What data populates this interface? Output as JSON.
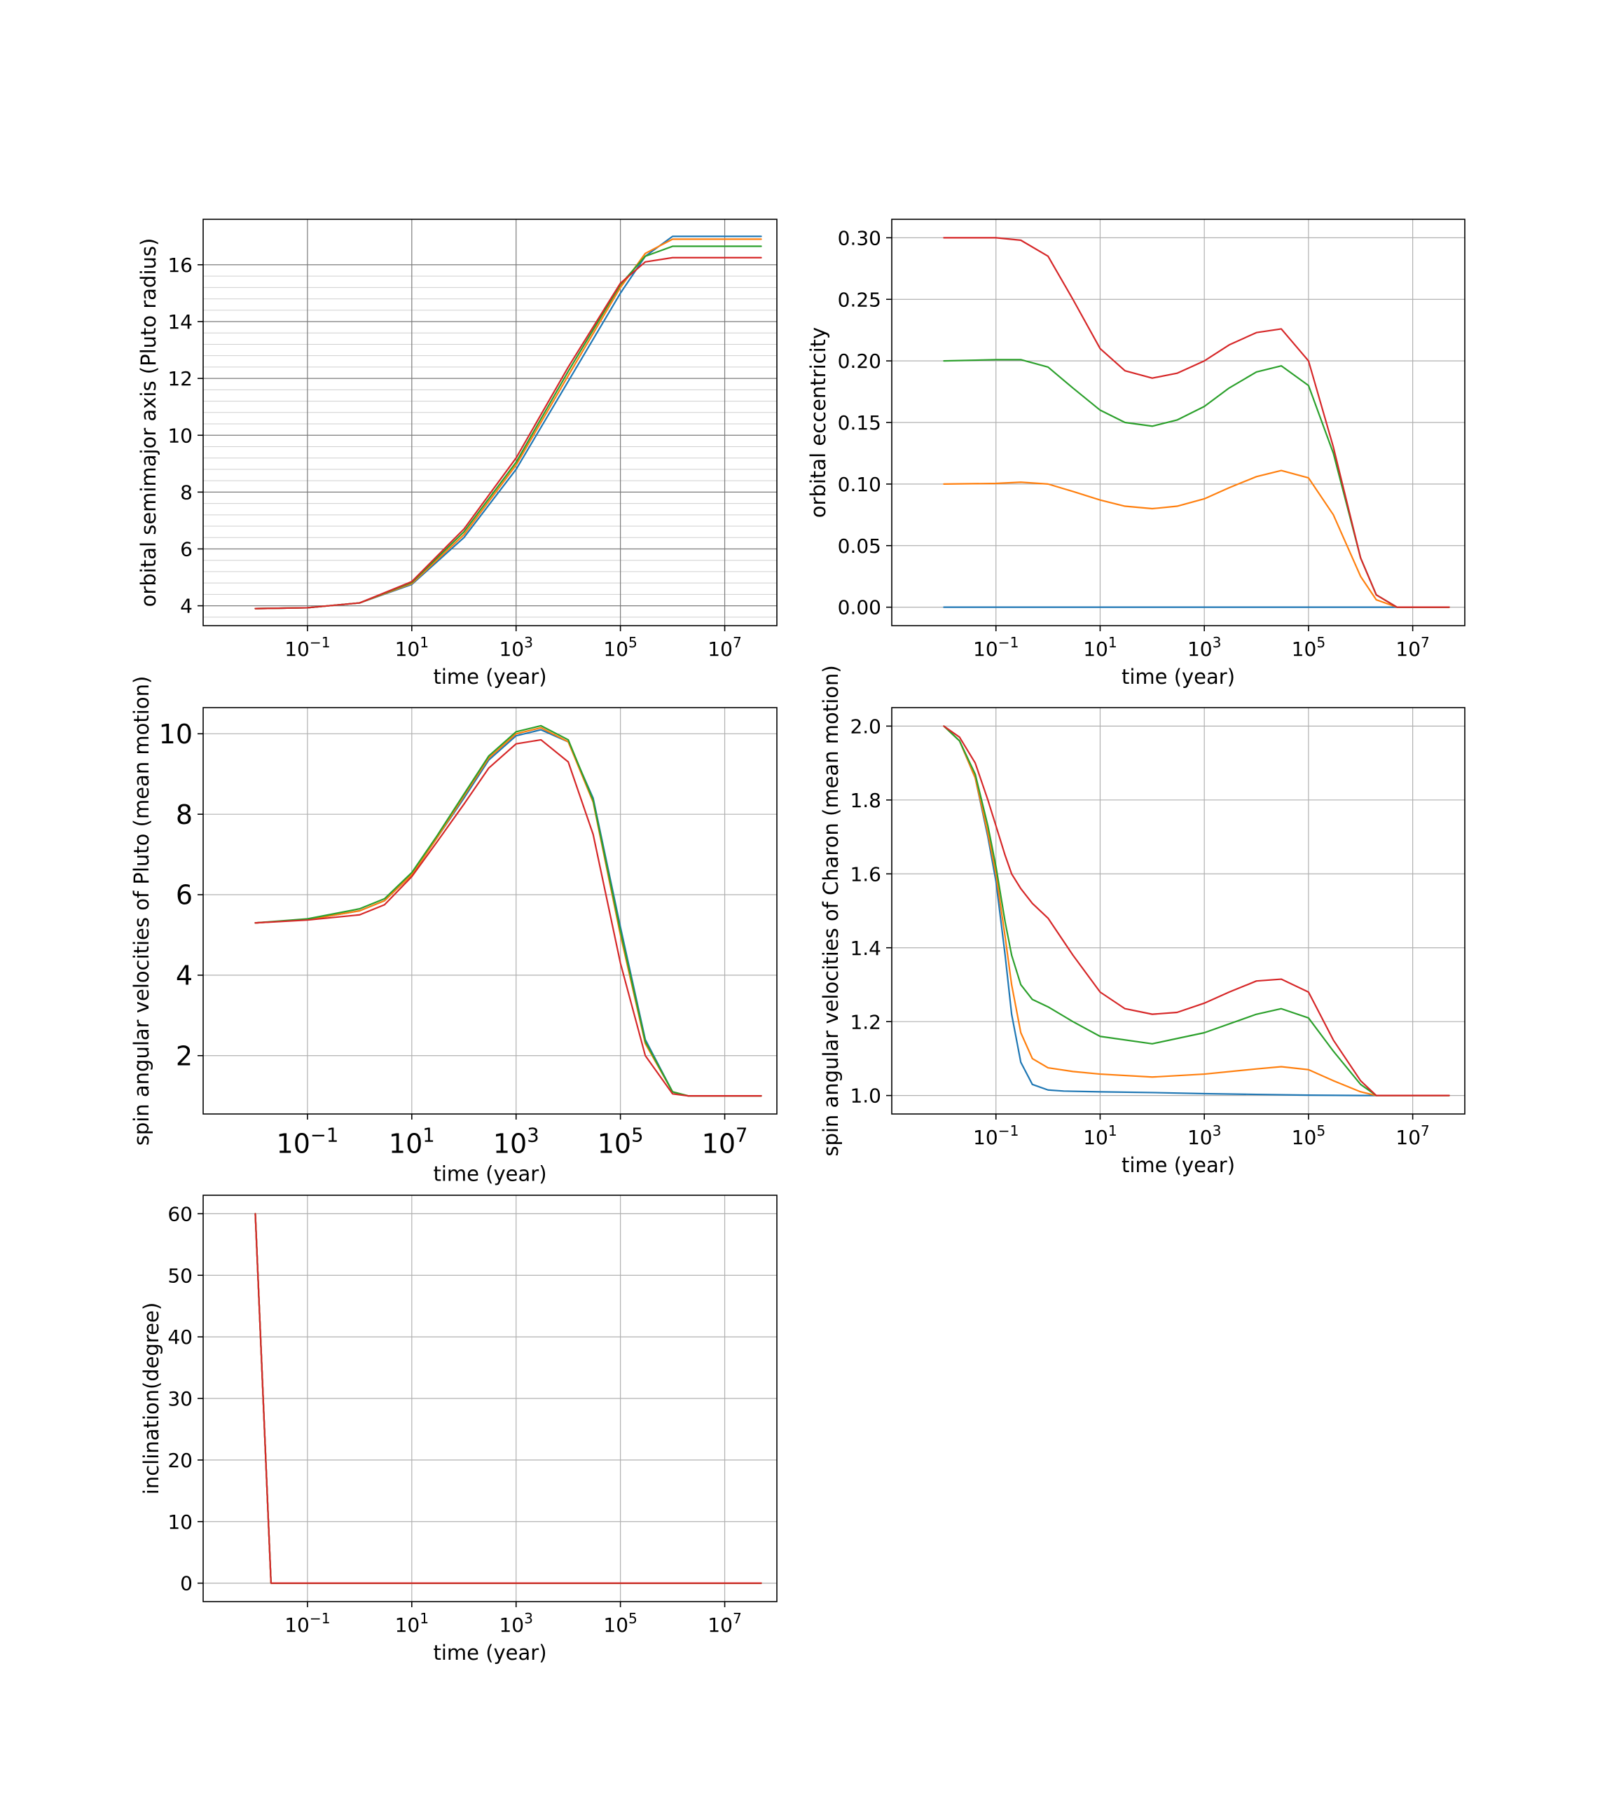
{
  "colors": {
    "C0": "#1f77b4",
    "C1": "#ff7f0e",
    "C2": "#2ca02c",
    "C3": "#d62728"
  },
  "chart_data": [
    {
      "type": "line",
      "id": "semimajor",
      "xscale": "log",
      "xlabel": "time  (year)",
      "ylabel": "orbital semimajor axis (Pluto radius)",
      "xlim": [
        0.001,
        100000000
      ],
      "ylim": [
        3.3,
        17.6
      ],
      "xticks": [
        0.1,
        10,
        1000,
        100000,
        10000000
      ],
      "xtick_labels": [
        [
          "10",
          "−1"
        ],
        [
          "10",
          "1"
        ],
        [
          "10",
          "3"
        ],
        [
          "10",
          "5"
        ],
        [
          "10",
          "7"
        ]
      ],
      "yticks": [
        4,
        6,
        8,
        10,
        12,
        14,
        16
      ],
      "ytick_labels": [
        "4",
        "6",
        "8",
        "10",
        "12",
        "14",
        "16"
      ],
      "grid": "major+minor",
      "series": [
        {
          "color": "C0",
          "x": [
            0.01,
            0.1,
            1,
            10,
            100,
            1000,
            10000,
            100000,
            300000,
            1000000,
            10000000,
            50000000
          ],
          "y": [
            3.9,
            3.93,
            4.1,
            4.75,
            6.4,
            8.8,
            11.9,
            15.0,
            16.3,
            17.0,
            17.0,
            17.0
          ]
        },
        {
          "color": "C1",
          "x": [
            0.01,
            0.1,
            1,
            10,
            100,
            1000,
            10000,
            100000,
            300000,
            1000000,
            10000000,
            50000000
          ],
          "y": [
            3.9,
            3.93,
            4.1,
            4.78,
            6.5,
            8.95,
            12.1,
            15.2,
            16.4,
            16.9,
            16.9,
            16.9
          ]
        },
        {
          "color": "C2",
          "x": [
            0.01,
            0.1,
            1,
            10,
            100,
            1000,
            10000,
            100000,
            300000,
            1000000,
            10000000,
            50000000
          ],
          "y": [
            3.9,
            3.93,
            4.1,
            4.82,
            6.6,
            9.05,
            12.25,
            15.3,
            16.3,
            16.65,
            16.65,
            16.65
          ]
        },
        {
          "color": "C3",
          "x": [
            0.01,
            0.1,
            1,
            10,
            100,
            1000,
            10000,
            100000,
            300000,
            1000000,
            10000000,
            50000000
          ],
          "y": [
            3.9,
            3.93,
            4.1,
            4.85,
            6.7,
            9.2,
            12.4,
            15.35,
            16.1,
            16.25,
            16.25,
            16.25
          ]
        }
      ]
    },
    {
      "type": "line",
      "id": "eccentricity",
      "xscale": "log",
      "xlabel": "time  (year)",
      "ylabel": "orbital eccentricity",
      "xlim": [
        0.001,
        100000000
      ],
      "ylim": [
        -0.015,
        0.315
      ],
      "xticks": [
        0.1,
        10,
        1000,
        100000,
        10000000
      ],
      "xtick_labels": [
        [
          "10",
          "−1"
        ],
        [
          "10",
          "1"
        ],
        [
          "10",
          "3"
        ],
        [
          "10",
          "5"
        ],
        [
          "10",
          "7"
        ]
      ],
      "yticks": [
        0.0,
        0.05,
        0.1,
        0.15,
        0.2,
        0.25,
        0.3
      ],
      "ytick_labels": [
        "0.00",
        "0.05",
        "0.10",
        "0.15",
        "0.20",
        "0.25",
        "0.30"
      ],
      "grid": "major",
      "series": [
        {
          "color": "C0",
          "x": [
            0.01,
            50000000
          ],
          "y": [
            0.0,
            0.0
          ]
        },
        {
          "color": "C1",
          "x": [
            0.01,
            0.1,
            0.3,
            1,
            3,
            10,
            30,
            100,
            300,
            1000,
            3000,
            10000,
            30000,
            100000,
            300000,
            1000000,
            2000000,
            5000000,
            50000000
          ],
          "y": [
            0.1,
            0.1005,
            0.1015,
            0.1,
            0.094,
            0.087,
            0.082,
            0.08,
            0.082,
            0.088,
            0.097,
            0.106,
            0.111,
            0.105,
            0.075,
            0.025,
            0.006,
            0.0,
            0.0
          ]
        },
        {
          "color": "C2",
          "x": [
            0.01,
            0.1,
            0.3,
            1,
            3,
            10,
            30,
            100,
            300,
            1000,
            3000,
            10000,
            30000,
            100000,
            300000,
            1000000,
            2000000,
            5000000,
            50000000
          ],
          "y": [
            0.2,
            0.201,
            0.201,
            0.195,
            0.178,
            0.16,
            0.15,
            0.147,
            0.152,
            0.163,
            0.178,
            0.191,
            0.196,
            0.18,
            0.125,
            0.04,
            0.01,
            0.0,
            0.0
          ]
        },
        {
          "color": "C3",
          "x": [
            0.01,
            0.1,
            0.3,
            1,
            3,
            10,
            30,
            100,
            300,
            1000,
            3000,
            10000,
            30000,
            100000,
            300000,
            1000000,
            2000000,
            5000000,
            50000000
          ],
          "y": [
            0.3,
            0.3,
            0.298,
            0.285,
            0.25,
            0.21,
            0.192,
            0.186,
            0.19,
            0.2,
            0.213,
            0.223,
            0.226,
            0.2,
            0.13,
            0.04,
            0.01,
            0.0,
            0.0
          ]
        }
      ]
    },
    {
      "type": "line",
      "id": "spin-pluto",
      "xscale": "log",
      "xlabel": "time (year)",
      "ylabel": "spin angular velocities of Pluto (mean motion)",
      "xlim": [
        0.001,
        100000000
      ],
      "ylim": [
        0.55,
        10.65
      ],
      "xticks": [
        0.1,
        10,
        1000,
        100000,
        10000000
      ],
      "xtick_labels": [
        [
          "10",
          "−1"
        ],
        [
          "10",
          "1"
        ],
        [
          "10",
          "3"
        ],
        [
          "10",
          "5"
        ],
        [
          "10",
          "7"
        ]
      ],
      "yticks": [
        2,
        4,
        6,
        8,
        10
      ],
      "ytick_labels": [
        "2",
        "4",
        "6",
        "8",
        "10"
      ],
      "grid": "major",
      "series": [
        {
          "color": "C0",
          "x": [
            0.01,
            0.1,
            1,
            3,
            10,
            30,
            100,
            300,
            1000,
            3000,
            10000,
            30000,
            100000,
            300000,
            1000000,
            2000000,
            5000000,
            50000000
          ],
          "y": [
            5.3,
            5.38,
            5.6,
            5.85,
            6.5,
            7.4,
            8.4,
            9.35,
            9.95,
            10.1,
            9.8,
            8.4,
            5.2,
            2.4,
            1.1,
            1.0,
            1.0,
            1.0
          ]
        },
        {
          "color": "C1",
          "x": [
            0.01,
            0.1,
            1,
            3,
            10,
            30,
            100,
            300,
            1000,
            3000,
            10000,
            30000,
            100000,
            300000,
            1000000,
            2000000,
            5000000,
            50000000
          ],
          "y": [
            5.3,
            5.38,
            5.6,
            5.85,
            6.5,
            7.4,
            8.45,
            9.4,
            10.0,
            10.15,
            9.8,
            8.3,
            5.0,
            2.3,
            1.1,
            1.0,
            1.0,
            1.0
          ]
        },
        {
          "color": "C2",
          "x": [
            0.01,
            0.1,
            1,
            3,
            10,
            30,
            100,
            300,
            1000,
            3000,
            10000,
            30000,
            100000,
            300000,
            1000000,
            2000000,
            5000000,
            50000000
          ],
          "y": [
            5.3,
            5.4,
            5.65,
            5.9,
            6.55,
            7.45,
            8.5,
            9.45,
            10.05,
            10.2,
            9.85,
            8.35,
            5.1,
            2.35,
            1.1,
            1.0,
            1.0,
            1.0
          ]
        },
        {
          "color": "C3",
          "x": [
            0.01,
            0.1,
            1,
            3,
            10,
            30,
            100,
            300,
            1000,
            3000,
            10000,
            30000,
            100000,
            300000,
            1000000,
            2000000,
            5000000,
            50000000
          ],
          "y": [
            5.3,
            5.37,
            5.5,
            5.75,
            6.45,
            7.3,
            8.25,
            9.15,
            9.75,
            9.85,
            9.3,
            7.5,
            4.3,
            2.0,
            1.05,
            1.0,
            1.0,
            1.0
          ]
        }
      ]
    },
    {
      "type": "line",
      "id": "spin-charon",
      "xscale": "log",
      "xlabel": "time  (year)",
      "ylabel": "spin angular velocities of Charon (mean motion)",
      "xlim": [
        0.001,
        100000000
      ],
      "ylim": [
        0.95,
        2.05
      ],
      "xticks": [
        0.1,
        10,
        1000,
        100000,
        10000000
      ],
      "xtick_labels": [
        [
          "10",
          "−1"
        ],
        [
          "10",
          "1"
        ],
        [
          "10",
          "3"
        ],
        [
          "10",
          "5"
        ],
        [
          "10",
          "7"
        ]
      ],
      "yticks": [
        1.0,
        1.2,
        1.4,
        1.6,
        1.8,
        2.0
      ],
      "ytick_labels": [
        "1.0",
        "1.2",
        "1.4",
        "1.6",
        "1.8",
        "2.0"
      ],
      "grid": "major",
      "series": [
        {
          "color": "C0",
          "x": [
            0.01,
            0.02,
            0.04,
            0.07,
            0.1,
            0.15,
            0.2,
            0.3,
            0.5,
            1,
            2,
            10,
            100,
            1000,
            10000,
            100000,
            1000000,
            50000000
          ],
          "y": [
            2.0,
            1.96,
            1.86,
            1.7,
            1.58,
            1.38,
            1.22,
            1.09,
            1.03,
            1.015,
            1.012,
            1.01,
            1.008,
            1.005,
            1.003,
            1.001,
            1.0,
            1.0
          ]
        },
        {
          "color": "C1",
          "x": [
            0.01,
            0.02,
            0.04,
            0.07,
            0.1,
            0.15,
            0.2,
            0.3,
            0.5,
            1,
            3,
            10,
            100,
            1000,
            10000,
            30000,
            100000,
            300000,
            1000000,
            2000000,
            50000000
          ],
          "y": [
            2.0,
            1.96,
            1.86,
            1.71,
            1.6,
            1.43,
            1.3,
            1.17,
            1.1,
            1.075,
            1.065,
            1.058,
            1.05,
            1.058,
            1.072,
            1.078,
            1.07,
            1.04,
            1.01,
            1.0,
            1.0
          ]
        },
        {
          "color": "C2",
          "x": [
            0.01,
            0.02,
            0.04,
            0.07,
            0.1,
            0.15,
            0.2,
            0.3,
            0.5,
            1,
            3,
            10,
            100,
            1000,
            10000,
            30000,
            100000,
            300000,
            1000000,
            2000000,
            50000000
          ],
          "y": [
            2.0,
            1.96,
            1.87,
            1.73,
            1.62,
            1.47,
            1.38,
            1.3,
            1.26,
            1.24,
            1.2,
            1.16,
            1.14,
            1.17,
            1.22,
            1.235,
            1.21,
            1.12,
            1.03,
            1.0,
            1.0
          ]
        },
        {
          "color": "C3",
          "x": [
            0.01,
            0.02,
            0.04,
            0.07,
            0.1,
            0.15,
            0.2,
            0.3,
            0.5,
            1,
            3,
            10,
            30,
            100,
            300,
            1000,
            3000,
            10000,
            30000,
            100000,
            300000,
            1000000,
            2000000,
            50000000
          ],
          "y": [
            2.0,
            1.97,
            1.9,
            1.8,
            1.73,
            1.65,
            1.6,
            1.56,
            1.52,
            1.48,
            1.38,
            1.28,
            1.235,
            1.22,
            1.225,
            1.25,
            1.28,
            1.31,
            1.315,
            1.28,
            1.15,
            1.04,
            1.0,
            1.0
          ]
        }
      ]
    },
    {
      "type": "line",
      "id": "inclination",
      "xscale": "log",
      "xlabel": "time  (year)",
      "ylabel": "inclination(degree)",
      "xlim": [
        0.001,
        100000000
      ],
      "ylim": [
        -3,
        63
      ],
      "xticks": [
        0.1,
        10,
        1000,
        100000,
        10000000
      ],
      "xtick_labels": [
        [
          "10",
          "−1"
        ],
        [
          "10",
          "1"
        ],
        [
          "10",
          "3"
        ],
        [
          "10",
          "5"
        ],
        [
          "10",
          "7"
        ]
      ],
      "yticks": [
        0,
        10,
        20,
        30,
        40,
        50,
        60
      ],
      "ytick_labels": [
        "0",
        "10",
        "20",
        "30",
        "40",
        "50",
        "60"
      ],
      "grid": "major",
      "series": [
        {
          "color": "C0",
          "x": [
            0.01,
            0.02,
            50000000
          ],
          "y": [
            60,
            0,
            0
          ]
        },
        {
          "color": "C1",
          "x": [
            0.01,
            0.02,
            50000000
          ],
          "y": [
            60,
            0,
            0
          ]
        },
        {
          "color": "C2",
          "x": [
            0.01,
            0.02,
            50000000
          ],
          "y": [
            60,
            0,
            0
          ]
        },
        {
          "color": "C3",
          "x": [
            0.01,
            0.02,
            50000000
          ],
          "y": [
            60,
            0,
            0
          ]
        }
      ]
    }
  ]
}
